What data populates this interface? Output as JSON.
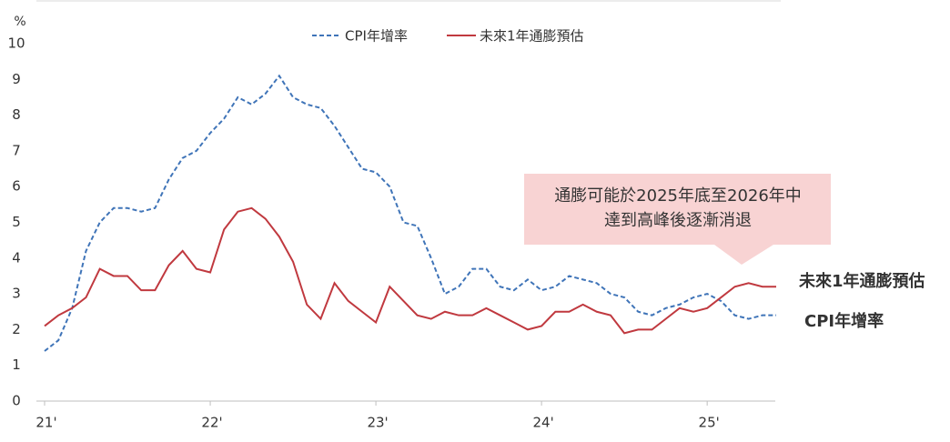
{
  "chart_data": {
    "type": "line",
    "unit_label": "%",
    "categories": [
      "21'",
      null,
      null,
      null,
      null,
      null,
      null,
      null,
      null,
      null,
      null,
      null,
      "22'",
      null,
      null,
      null,
      null,
      null,
      null,
      null,
      null,
      null,
      null,
      null,
      "23'",
      null,
      null,
      null,
      null,
      null,
      null,
      null,
      null,
      null,
      null,
      null,
      "24'",
      null,
      null,
      null,
      null,
      null,
      null,
      null,
      null,
      null,
      null,
      null,
      "25'",
      null,
      null,
      null,
      null,
      null
    ],
    "series": [
      {
        "name": "CPI年增率",
        "color": "#3f74b8",
        "dashed": true,
        "values": [
          1.4,
          1.7,
          2.6,
          4.2,
          5.0,
          5.4,
          5.4,
          5.3,
          5.4,
          6.2,
          6.8,
          7.0,
          7.5,
          7.9,
          8.5,
          8.3,
          8.6,
          9.1,
          8.5,
          8.3,
          8.2,
          7.7,
          7.1,
          6.5,
          6.4,
          6.0,
          5.0,
          4.9,
          4.0,
          3.0,
          3.2,
          3.7,
          3.7,
          3.2,
          3.1,
          3.4,
          3.1,
          3.2,
          3.5,
          3.4,
          3.3,
          3.0,
          2.9,
          2.5,
          2.4,
          2.6,
          2.7,
          2.9,
          3.0,
          2.8,
          2.4,
          2.3,
          2.4,
          2.4
        ]
      },
      {
        "name": "未來1年通膨預估",
        "color": "#c0393f",
        "dashed": false,
        "values": [
          2.1,
          2.4,
          2.6,
          2.9,
          3.7,
          3.5,
          3.5,
          3.1,
          3.1,
          3.8,
          4.2,
          3.7,
          3.6,
          4.8,
          5.3,
          5.4,
          5.1,
          4.6,
          3.9,
          2.7,
          2.3,
          3.3,
          2.8,
          2.5,
          2.2,
          3.2,
          2.8,
          2.4,
          2.3,
          2.5,
          2.4,
          2.4,
          2.6,
          2.4,
          2.2,
          2.0,
          2.1,
          2.5,
          2.5,
          2.7,
          2.5,
          2.4,
          1.9,
          2.0,
          2.0,
          2.3,
          2.6,
          2.5,
          2.6,
          2.9,
          3.2,
          3.3,
          3.2,
          3.2
        ]
      }
    ],
    "ylim": [
      0,
      10
    ],
    "yticks": [
      0,
      1,
      2,
      3,
      4,
      5,
      6,
      7,
      8,
      9,
      10
    ],
    "annotation": [
      "通膨可能於2025年底至2026年中",
      "達到高峰後逐漸消退"
    ]
  }
}
